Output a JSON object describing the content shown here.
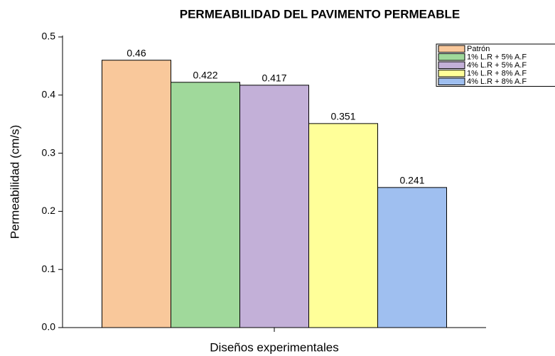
{
  "chart_data": {
    "type": "bar",
    "title": "PERMEABILIDAD DEL PAVIMENTO PERMEABLE",
    "x_label": "Diseños experimentales",
    "y_label": "Permeabilidad (cm/s)",
    "categories": [
      null
    ],
    "series": [
      {
        "name": "Patrón",
        "color": "#f9c89b",
        "values": [
          0.46
        ]
      },
      {
        "name": "1% L.R + 5% A.F",
        "color": "#a0d99b",
        "values": [
          0.422
        ]
      },
      {
        "name": "4% L.R + 5% A.F",
        "color": "#c3b0d8",
        "values": [
          0.417
        ]
      },
      {
        "name": "1% L.R + 8% A.F",
        "color": "#ffff99",
        "values": [
          0.351
        ]
      },
      {
        "name": "4% L.R + 8% A.F",
        "color": "#9fbff0",
        "values": [
          0.241
        ]
      }
    ],
    "ylim": [
      0,
      0.5
    ],
    "yticks": [
      {
        "value": 0,
        "label": "0.0"
      },
      0.1,
      0.2,
      0.3,
      0.4,
      {
        "value": 0.5,
        "label": "0.5"
      }
    ],
    "legend": "upper right",
    "grid": false
  }
}
